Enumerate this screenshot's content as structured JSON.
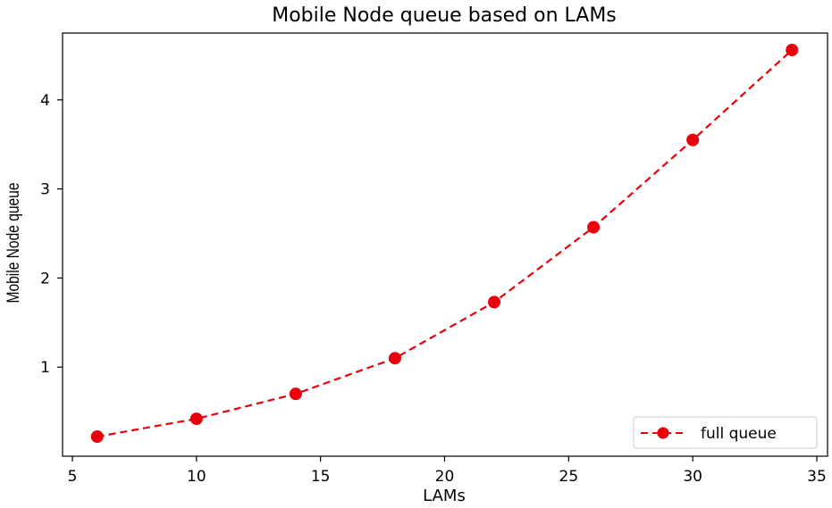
{
  "chart_data": {
    "type": "line",
    "title": "Mobile Node queue based on LAMs",
    "xlabel": "LAMs",
    "ylabel": "Mobile Node queue",
    "xlim": [
      5,
      35
    ],
    "ylim": [
      0.0,
      4.75
    ],
    "xticks": [
      5,
      10,
      15,
      20,
      25,
      30,
      35
    ],
    "yticks": [
      1,
      2,
      3,
      4
    ],
    "grid": false,
    "legend_position": "bottom-right",
    "series": [
      {
        "name": "full queue",
        "color": "#e8000b",
        "line_style": "dashed",
        "marker": "circle",
        "x": [
          6,
          10,
          14,
          18,
          22,
          26,
          30,
          34
        ],
        "y": [
          0.22,
          0.42,
          0.7,
          1.1,
          1.73,
          2.57,
          3.55,
          4.56
        ]
      }
    ]
  }
}
